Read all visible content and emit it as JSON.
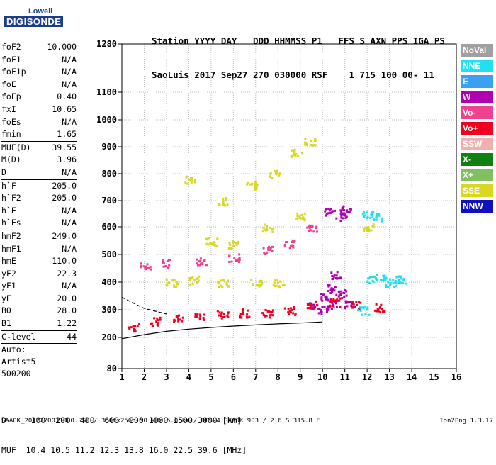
{
  "logo": {
    "top": "Lowell",
    "bottom": "DIGISONDE"
  },
  "header": {
    "line1": "Station YYYY DAY   DDD HHMMSS P1   FFS S AXN PPS IGA PS",
    "line2": "SaoLuis 2017 Sep27 270 030000 RSF    1 715 100 00- 11"
  },
  "params": {
    "group1": [
      {
        "label": "foF2",
        "value": "10.000"
      },
      {
        "label": "foF1",
        "value": "N/A"
      },
      {
        "label": "foF1p",
        "value": "N/A"
      },
      {
        "label": "foE",
        "value": "N/A"
      },
      {
        "label": "foEp",
        "value": "0.40"
      },
      {
        "label": "fxI",
        "value": "10.65"
      },
      {
        "label": "foEs",
        "value": "N/A"
      },
      {
        "label": "fmin",
        "value": "1.65"
      }
    ],
    "group2": [
      {
        "label": "MUF(D)",
        "value": "39.55"
      },
      {
        "label": "M(D)",
        "value": "3.96"
      },
      {
        "label": "D",
        "value": "N/A"
      }
    ],
    "group3": [
      {
        "label": "h`F",
        "value": "205.0"
      },
      {
        "label": "h`F2",
        "value": "205.0"
      },
      {
        "label": "h`E",
        "value": "N/A"
      },
      {
        "label": "h`Es",
        "value": "N/A"
      }
    ],
    "group4": [
      {
        "label": "hmF2",
        "value": "249.0"
      },
      {
        "label": "hmF1",
        "value": "N/A"
      },
      {
        "label": "hmE",
        "value": "110.0"
      },
      {
        "label": "yF2",
        "value": "22.3"
      },
      {
        "label": "yF1",
        "value": "N/A"
      },
      {
        "label": "yE",
        "value": "20.0"
      },
      {
        "label": "B0",
        "value": "28.0"
      },
      {
        "label": "B1",
        "value": "1.22"
      }
    ],
    "group5": [
      {
        "label": "C-level",
        "value": "44"
      }
    ],
    "artist": [
      "Auto:",
      "Artist5",
      "500200"
    ]
  },
  "legend": [
    {
      "label": "NoVal",
      "color": "#a0a0a0"
    },
    {
      "label": "NNE",
      "color": "#22e0f0"
    },
    {
      "label": "E",
      "color": "#3ca0f0"
    },
    {
      "label": "W",
      "color": "#b000b0"
    },
    {
      "label": "Vo-",
      "color": "#f04090"
    },
    {
      "label": "Vo+",
      "color": "#f00020"
    },
    {
      "label": "SSW",
      "color": "#f0b0b0"
    },
    {
      "label": "X-",
      "color": "#108010"
    },
    {
      "label": "X+",
      "color": "#80c060"
    },
    {
      "label": "SSE",
      "color": "#d8d820"
    },
    {
      "label": "NNW",
      "color": "#1010c0"
    }
  ],
  "mufrows": {
    "line1": "D     100  200  400  600  800 1000 1500 3000 [km]",
    "line2": "MUF  10.4 10.5 11.2 12.3 13.8 16.0 22.5 39.6 [MHz]"
  },
  "footer": "SAA0K_2017270030000.RSF / 300fx256h 50 kHz 5.0 km / DPS-4 SAA0K 903 / 2.6 S 315.8 E",
  "version": "Ion2Png 1.3.17",
  "chart_data": {
    "type": "scatter",
    "xlim": [
      1,
      16
    ],
    "x_ticks": [
      1,
      2,
      3,
      4,
      5,
      6,
      7,
      8,
      9,
      10,
      11,
      12,
      13,
      14,
      15,
      16
    ],
    "y_ticks": [
      80,
      200,
      300,
      400,
      500,
      600,
      700,
      800,
      900,
      1000,
      1100,
      1280
    ],
    "ylim": [
      80,
      1280
    ],
    "grid": true,
    "series": [
      {
        "color": "#b000b0",
        "points": [
          [
            10.1,
            350
          ],
          [
            10.4,
            380
          ],
          [
            10.8,
            360
          ],
          [
            11.2,
            320
          ],
          [
            10.6,
            430
          ],
          [
            10.3,
            660
          ],
          [
            10.8,
            640
          ],
          [
            11.0,
            670
          ],
          [
            9.6,
            320
          ],
          [
            10.0,
            300
          ],
          [
            10.4,
            320
          ]
        ]
      },
      {
        "color": "#f00020",
        "points": [
          [
            1.5,
            240
          ],
          [
            2.5,
            260
          ],
          [
            3.5,
            270
          ],
          [
            4.5,
            280
          ],
          [
            5.5,
            285
          ],
          [
            6.5,
            290
          ],
          [
            7.5,
            290
          ],
          [
            8.5,
            300
          ],
          [
            9.5,
            320
          ],
          [
            10.5,
            330
          ],
          [
            11.5,
            320
          ],
          [
            12.5,
            310
          ]
        ]
      },
      {
        "color": "#22e0f0",
        "points": [
          [
            12.2,
            410
          ],
          [
            12.6,
            420
          ],
          [
            13.0,
            400
          ],
          [
            13.5,
            410
          ],
          [
            12.4,
            640
          ],
          [
            12.0,
            650
          ],
          [
            11.8,
            300
          ]
        ]
      },
      {
        "color": "#d8d820",
        "points": [
          [
            3.2,
            400
          ],
          [
            4.2,
            410
          ],
          [
            5.5,
            400
          ],
          [
            7.0,
            400
          ],
          [
            8.0,
            400
          ],
          [
            4.0,
            780
          ],
          [
            5.5,
            700
          ],
          [
            6.8,
            760
          ],
          [
            7.8,
            800
          ],
          [
            8.8,
            880
          ],
          [
            9.4,
            920
          ],
          [
            5.0,
            550
          ],
          [
            6.0,
            540
          ],
          [
            7.5,
            600
          ],
          [
            9.0,
            640
          ],
          [
            12.0,
            600
          ]
        ]
      },
      {
        "color": "#f04090",
        "points": [
          [
            2.0,
            460
          ],
          [
            3.0,
            470
          ],
          [
            4.5,
            480
          ],
          [
            6.0,
            490
          ],
          [
            7.5,
            520
          ],
          [
            8.5,
            540
          ],
          [
            9.5,
            600
          ]
        ]
      }
    ],
    "curves": [
      {
        "style": "solid",
        "points": [
          [
            1,
            195
          ],
          [
            2,
            210
          ],
          [
            3,
            222
          ],
          [
            4,
            230
          ],
          [
            5,
            236
          ],
          [
            6,
            241
          ],
          [
            7,
            245
          ],
          [
            8,
            249
          ],
          [
            9,
            252
          ],
          [
            10,
            256
          ]
        ]
      },
      {
        "style": "dashed",
        "points": [
          [
            1,
            345
          ],
          [
            1.5,
            325
          ],
          [
            2,
            305
          ],
          [
            3,
            285
          ]
        ]
      }
    ]
  }
}
